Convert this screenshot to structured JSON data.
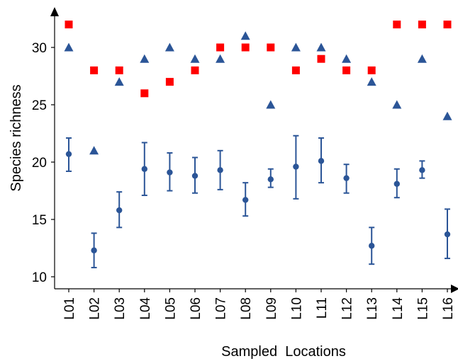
{
  "chart_data": {
    "type": "scatter",
    "title": "",
    "xlabel": "Sampled  Locations",
    "ylabel": "Species richness",
    "categories": [
      "L01",
      "L02",
      "L03",
      "L04",
      "L05",
      "L06",
      "L07",
      "L08",
      "L09",
      "L10",
      "L11",
      "L12",
      "L13",
      "L14",
      "L15",
      "L16"
    ],
    "ylim": [
      9,
      33.5
    ],
    "yticks": [
      10,
      15,
      20,
      25,
      30
    ],
    "grid": false,
    "legend": "none",
    "series": [
      {
        "marker": "square",
        "color": "#ff0000",
        "values": [
          32,
          28,
          28,
          26,
          27,
          28,
          30,
          30,
          30,
          28,
          29,
          28,
          28,
          32,
          32,
          32
        ]
      },
      {
        "marker": "triangle",
        "color": "#2b5597",
        "values": [
          30,
          21,
          27,
          29,
          30,
          29,
          29,
          31,
          25,
          30,
          30,
          29,
          27,
          25,
          29,
          24
        ]
      },
      {
        "marker": "circle-errorbar",
        "color": "#2b5597",
        "values": [
          20.7,
          12.3,
          15.8,
          19.4,
          19.1,
          18.8,
          19.3,
          16.7,
          18.5,
          19.6,
          20.1,
          18.6,
          12.7,
          18.1,
          19.3,
          13.7
        ],
        "lower": [
          19.2,
          10.8,
          14.3,
          17.1,
          17.5,
          17.3,
          17.6,
          15.3,
          17.8,
          16.8,
          18.2,
          17.3,
          11.1,
          16.9,
          18.6,
          11.6
        ],
        "upper": [
          22.1,
          13.8,
          17.4,
          21.7,
          20.8,
          20.4,
          21.0,
          18.2,
          19.4,
          22.3,
          22.1,
          19.8,
          14.3,
          19.4,
          20.1,
          15.9
        ]
      }
    ]
  }
}
